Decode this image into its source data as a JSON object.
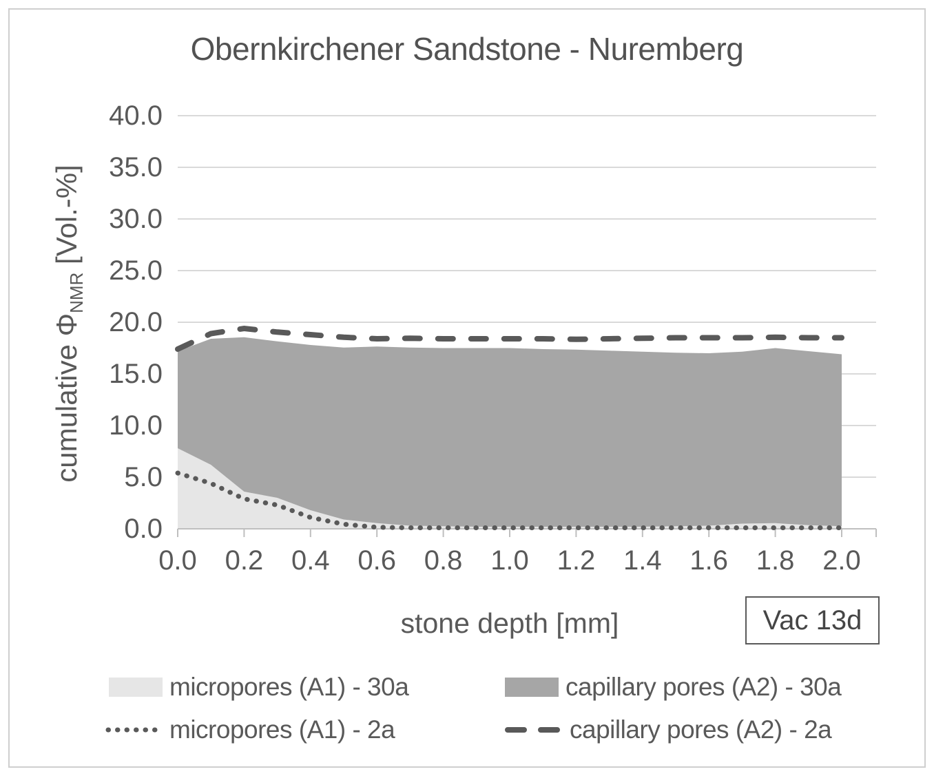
{
  "figure": {
    "title": "Obernkirchener Sandstone - Nuremberg",
    "annotation_box_label": "Vac 13d"
  },
  "axes": {
    "y_title_main": "cumulative Φ",
    "y_title_sub": "NMR",
    "y_title_unit": " [Vol.-%]",
    "x_title": "stone depth [mm]",
    "y_ticks": [
      "40.0",
      "35.0",
      "30.0",
      "25.0",
      "20.0",
      "15.0",
      "10.0",
      "5.0",
      "0.0"
    ],
    "x_ticks": [
      "0.0",
      "0.2",
      "0.4",
      "0.6",
      "0.8",
      "1.0",
      "1.2",
      "1.4",
      "1.6",
      "1.8",
      "2.0"
    ]
  },
  "legend": {
    "items": [
      {
        "label": "micropores (A1) - 30a",
        "swatch": "light-area"
      },
      {
        "label": "capillary pores (A2) - 30a",
        "swatch": "dark-area"
      },
      {
        "label": "micropores (A1) - 2a",
        "swatch": "dotted-line"
      },
      {
        "label": "capillary pores (A2) - 2a",
        "swatch": "dashed-line"
      }
    ]
  },
  "colors": {
    "area_light": "#e6e6e6",
    "area_dark": "#a6a6a6",
    "line_dark": "#595959",
    "gridline": "#d9d9d9",
    "axis_line": "#bfbfbf",
    "text": "#595959"
  },
  "chart_data": {
    "type": "area",
    "title": "Obernkirchener Sandstone - Nuremberg",
    "xlabel": "stone depth [mm]",
    "ylabel": "cumulative PhiNMR [Vol.-%]",
    "annotation": "Vac 13d",
    "xlim": [
      0.0,
      2.1
    ],
    "ylim": [
      0.0,
      40.0
    ],
    "y_tick_step": 5.0,
    "grid": "horizontal",
    "legend_position": "bottom",
    "stacked_areas_note": "area series are stacked (capillary pores drawn on top of micropores); line series are absolute values",
    "x": [
      0.0,
      0.1,
      0.2,
      0.3,
      0.4,
      0.5,
      0.6,
      0.7,
      0.8,
      0.9,
      1.0,
      1.1,
      1.2,
      1.3,
      1.4,
      1.5,
      1.6,
      1.7,
      1.8,
      1.9,
      2.0
    ],
    "series": [
      {
        "name": "micropores (A1) - 30a",
        "style": "area-light",
        "stack": "30a",
        "values": [
          7.8,
          6.2,
          3.6,
          3.0,
          1.8,
          0.9,
          0.55,
          0.3,
          0.25,
          0.2,
          0.2,
          0.2,
          0.2,
          0.2,
          0.2,
          0.25,
          0.3,
          0.5,
          0.55,
          0.35,
          0.25
        ]
      },
      {
        "name": "capillary pores (A2) - 30a",
        "style": "area-dark",
        "stack": "30a",
        "values": [
          9.4,
          12.2,
          14.95,
          15.15,
          16.0,
          16.65,
          17.1,
          17.25,
          17.25,
          17.3,
          17.3,
          17.2,
          17.15,
          17.05,
          16.95,
          16.8,
          16.7,
          16.65,
          16.95,
          16.85,
          16.65
        ]
      },
      {
        "name": "micropores (A1) - 2a",
        "style": "dotted-line",
        "values": [
          5.4,
          4.4,
          2.9,
          2.3,
          1.1,
          0.45,
          0.15,
          0.1,
          0.1,
          0.1,
          0.1,
          0.1,
          0.1,
          0.1,
          0.1,
          0.1,
          0.1,
          0.1,
          0.1,
          0.1,
          0.1
        ]
      },
      {
        "name": "capillary pores (A2) - 2a",
        "style": "dashed-line",
        "values": [
          17.4,
          18.9,
          19.4,
          19.05,
          18.8,
          18.55,
          18.4,
          18.45,
          18.4,
          18.4,
          18.4,
          18.4,
          18.35,
          18.4,
          18.45,
          18.5,
          18.5,
          18.5,
          18.55,
          18.5,
          18.5
        ]
      }
    ]
  }
}
